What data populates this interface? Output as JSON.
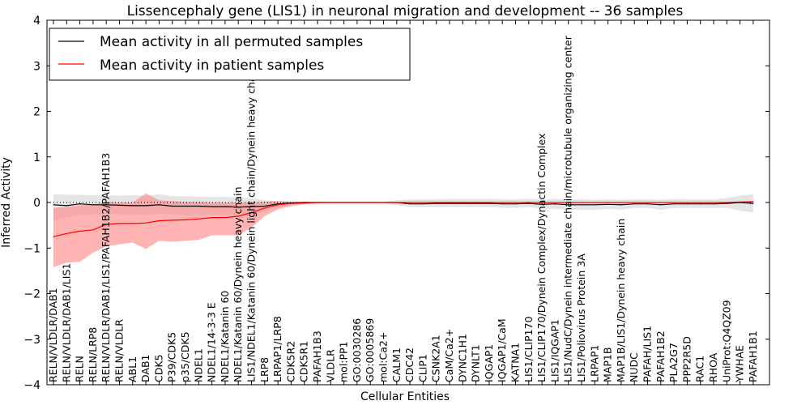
{
  "chart_data": {
    "type": "line",
    "title": "Lissencephaly gene (LIS1) in neuronal migration and development -- 36 samples",
    "xlabel": "Cellular Entities",
    "ylabel": "Inferred Activity",
    "ylim": [
      -4,
      4
    ],
    "yticks": [
      -4,
      -3,
      -2,
      -1,
      0,
      1,
      2,
      3,
      4
    ],
    "legend_position": "top-left",
    "colors": {
      "permuted": "#000000",
      "patient": "#ff0000",
      "permuted_band": "#cccccc",
      "patient_band": "#ff8080"
    },
    "categories": [
      "RELN/VLDLR/DAB1",
      "RELN/VLDLR/DAB1/LIS1",
      "RELN",
      "RELN/LRP8",
      "RELN/VLDLR/DAB1/LIS1/PAFAH1B2/PAFAH1B3",
      "RELN/VLDLR",
      "ABL1",
      "DAB1",
      "CDK5",
      "P39/CDK5",
      "p35/CDK5",
      "NDEL1",
      "NDEL1/14-3-3 E",
      "NDEL1/Katanin 60",
      "NDEL1/Katanin 60/Dynein heavy chain",
      "LIS1/NDEL1/Katanin 60/Dynein light chain/Dynein heavy chain",
      "LRP8",
      "LRPAP1/LRP8",
      "CDK5R2",
      "CDK5R1",
      "PAFAH1B3",
      "VLDLR",
      "mol:PP1",
      "GO:0030286",
      "GO:0005869",
      "mol:Ca2+",
      "CALM1",
      "CDC42",
      "CLIP1",
      "CSNK2A1",
      "CaM/Ca2+",
      "DYNC1H1",
      "DYNLT1",
      "IQGAP1",
      "IQGAP1/CaM",
      "KATNA1",
      "LIS1/CLIP170",
      "LIS1/CLIP170/Dynein Complex/Dynactin Complex",
      "LIS1/IQGAP1",
      "LIS1/NudC/Dynein intermediate chain/microtubule organizing center",
      "LIS1/Poliovirus Protein 3A",
      "LRPAP1",
      "MAP1B",
      "MAP1B/LIS1/Dynein heavy chain",
      "NUDC",
      "PAFAH/LIS1",
      "PAFAH1B2",
      "PLA2G7",
      "PPP2R5D",
      "RAC1",
      "RHOA",
      "UniProt:Q4QZ09",
      "YWHAE",
      "PAFAH1B1"
    ],
    "series": [
      {
        "name": "Mean activity in all permuted samples",
        "color": "#000000",
        "values": [
          -0.05,
          -0.07,
          -0.03,
          -0.05,
          -0.05,
          -0.06,
          -0.07,
          -0.07,
          -0.05,
          -0.08,
          -0.08,
          -0.08,
          -0.09,
          -0.09,
          -0.1,
          -0.09,
          -0.08,
          -0.03,
          -0.01,
          0,
          0,
          0,
          0,
          0,
          0,
          0,
          0,
          -0.03,
          -0.03,
          -0.02,
          -0.02,
          -0.02,
          -0.02,
          -0.02,
          -0.03,
          -0.03,
          -0.02,
          -0.04,
          -0.03,
          -0.05,
          -0.05,
          -0.05,
          -0.04,
          -0.05,
          -0.03,
          -0.03,
          -0.05,
          -0.03,
          -0.03,
          -0.03,
          -0.03,
          -0.02,
          0,
          -0.02
        ],
        "lower": [
          -0.4,
          -0.32,
          -0.26,
          -0.26,
          -0.25,
          -0.26,
          -0.26,
          -0.28,
          -0.24,
          -0.26,
          -0.28,
          -0.27,
          -0.28,
          -0.28,
          -0.3,
          -0.3,
          -0.18,
          -0.1,
          -0.05,
          -0.02,
          -0.02,
          -0.01,
          0,
          0,
          -0.01,
          -0.01,
          -0.06,
          -0.1,
          -0.1,
          -0.1,
          -0.1,
          -0.1,
          -0.1,
          -0.1,
          -0.12,
          -0.12,
          -0.1,
          -0.14,
          -0.14,
          -0.16,
          -0.16,
          -0.16,
          -0.14,
          -0.16,
          -0.12,
          -0.12,
          -0.16,
          -0.12,
          -0.12,
          -0.12,
          -0.12,
          -0.12,
          -0.18,
          -0.22
        ],
        "upper": [
          0.18,
          0.17,
          0.17,
          0.16,
          0.16,
          0.15,
          0.16,
          0.15,
          0.18,
          0.14,
          0.14,
          0.13,
          0.12,
          0.12,
          0.11,
          0.1,
          0.05,
          0.03,
          0.02,
          0.02,
          0.02,
          0.02,
          0.02,
          0.02,
          0.02,
          0.02,
          0.05,
          0.07,
          0.07,
          0.07,
          0.08,
          0.08,
          0.08,
          0.08,
          0.07,
          0.07,
          0.08,
          0.07,
          0.08,
          0.07,
          0.07,
          0.06,
          0.07,
          0.06,
          0.07,
          0.07,
          0.06,
          0.08,
          0.07,
          0.07,
          0.07,
          0.1,
          0.15,
          0.18
        ]
      },
      {
        "name": "Mean activity in patient samples",
        "color": "#ff0000",
        "values": [
          -0.75,
          -0.68,
          -0.63,
          -0.6,
          -0.48,
          -0.46,
          -0.46,
          -0.45,
          -0.4,
          -0.39,
          -0.38,
          -0.36,
          -0.33,
          -0.33,
          -0.3,
          -0.22,
          -0.12,
          -0.05,
          -0.02,
          -0.01,
          0,
          0,
          0,
          0,
          0,
          0,
          0,
          0,
          0,
          0,
          0,
          0,
          0,
          0,
          0,
          0,
          0,
          0,
          0,
          0,
          0,
          0,
          0,
          0,
          0,
          0,
          0,
          0,
          0,
          0,
          0,
          0,
          0.01,
          0.02
        ],
        "lower": [
          -1.42,
          -1.32,
          -1.3,
          -1.1,
          -0.96,
          -0.92,
          -0.88,
          -1.02,
          -0.84,
          -0.86,
          -0.84,
          -0.82,
          -0.72,
          -0.72,
          -0.72,
          -0.55,
          -0.3,
          -0.15,
          -0.08,
          -0.04,
          -0.02,
          0,
          0,
          0,
          0,
          0,
          0,
          0,
          0,
          0,
          0,
          0,
          0,
          0,
          0,
          0,
          0,
          0,
          0,
          0,
          0,
          0,
          0,
          0,
          0,
          0,
          0,
          0,
          0,
          0,
          0,
          0,
          0,
          0
        ],
        "upper": [
          -0.12,
          -0.1,
          -0.06,
          -0.05,
          0.02,
          0,
          0,
          0.2,
          0.05,
          0.03,
          0.02,
          0.02,
          0,
          0,
          0,
          0,
          0.02,
          0.03,
          0.02,
          0.01,
          0.01,
          0.01,
          0,
          0,
          0,
          0,
          0,
          0,
          0,
          0,
          0,
          0,
          0,
          0,
          0,
          0,
          0,
          0,
          0,
          0,
          0,
          0,
          0,
          0,
          0,
          0,
          0,
          0,
          0,
          0,
          0,
          0,
          0.02,
          0.03
        ]
      }
    ],
    "baseline": 0
  }
}
